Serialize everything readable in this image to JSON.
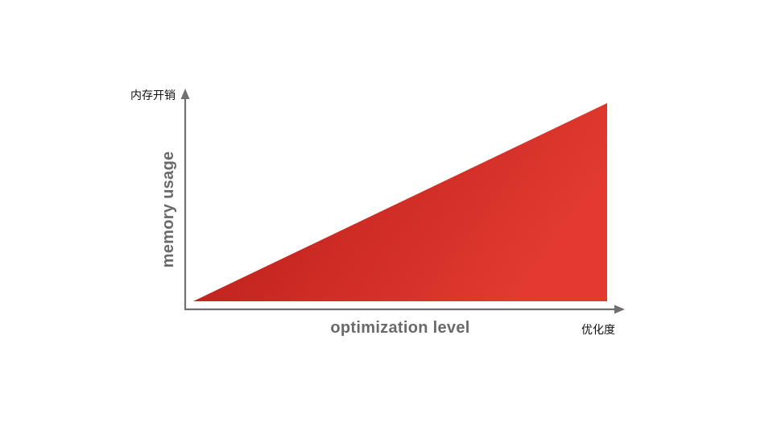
{
  "y_axis": {
    "title": "memory usage",
    "subtitle": "内存开销"
  },
  "x_axis": {
    "title": "optimization level",
    "subtitle": "优化度"
  },
  "colors": {
    "axis": "#707070",
    "axis_title": "#6a6a6a",
    "area_start": "#b51a17",
    "area_end": "#e23a30",
    "background": "#ffffff"
  }
}
